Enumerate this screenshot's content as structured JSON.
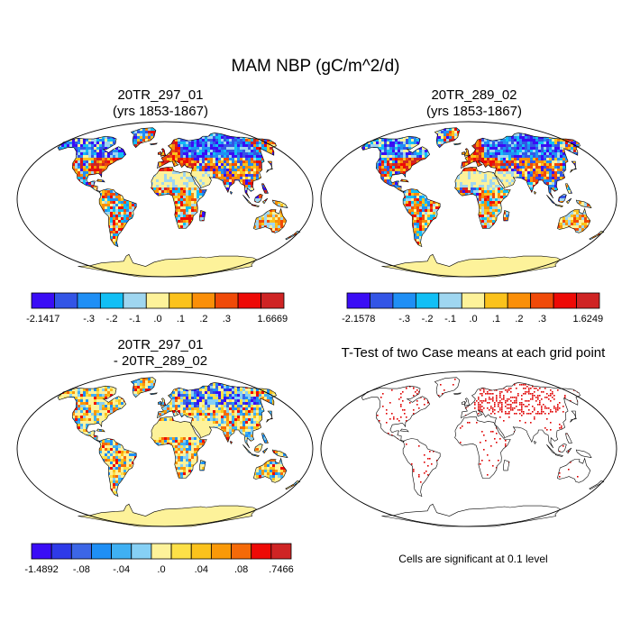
{
  "title": "MAM NBP (gC/m^2/d)",
  "panels": [
    {
      "id": "p1",
      "title_lines": [
        "20TR_297_01",
        "(yrs 1853-1867)"
      ],
      "colorbar": {
        "colors": [
          "#3a0df5",
          "#3355e6",
          "#1f8ff5",
          "#12bff5",
          "#9fd6f0",
          "#fdf29a",
          "#fbc21c",
          "#fa8f08",
          "#f04a08",
          "#ee0a06",
          "#cf2424"
        ],
        "labels": [
          "-2.1417",
          "",
          "-.3",
          "-.2",
          "-.1",
          ".0",
          ".1",
          ".2",
          ".3",
          "",
          "1.6669"
        ]
      }
    },
    {
      "id": "p2",
      "title_lines": [
        "20TR_289_02",
        "(yrs 1853-1867)"
      ],
      "colorbar": {
        "colors": [
          "#3a0df5",
          "#3355e6",
          "#1f8ff5",
          "#12bff5",
          "#9fd6f0",
          "#fdf29a",
          "#fbc21c",
          "#fa8f08",
          "#f04a08",
          "#ee0a06",
          "#cf2424"
        ],
        "labels": [
          "-2.1578",
          "",
          "-.3",
          "-.2",
          "-.1",
          ".0",
          ".1",
          ".2",
          ".3",
          "",
          "1.6249"
        ]
      }
    },
    {
      "id": "p3",
      "title_lines": [
        "20TR_297_01",
        "- 20TR_289_02"
      ],
      "colorbar": {
        "colors": [
          "#3a0df5",
          "#2e3ae8",
          "#3c66e6",
          "#1f8ff5",
          "#3fb0f3",
          "#86d0f5",
          "#fdf29a",
          "#fde047",
          "#fbc21c",
          "#fa9908",
          "#f56a08",
          "#ee0a06",
          "#cf2424"
        ],
        "labels": [
          "-1.4892",
          "",
          "-.08",
          "",
          "-.04",
          "",
          ".0",
          "",
          ".04",
          "",
          ".08",
          "",
          ".7466"
        ]
      }
    },
    {
      "id": "p4",
      "title_lines": [
        "T-Test of two Case means at each grid point"
      ]
    }
  ],
  "significance_note": "Cells are significant at 0.1 level",
  "colors": {
    "land_base": "#fdf29a",
    "significance": "#e00000",
    "coast": "#000000"
  }
}
